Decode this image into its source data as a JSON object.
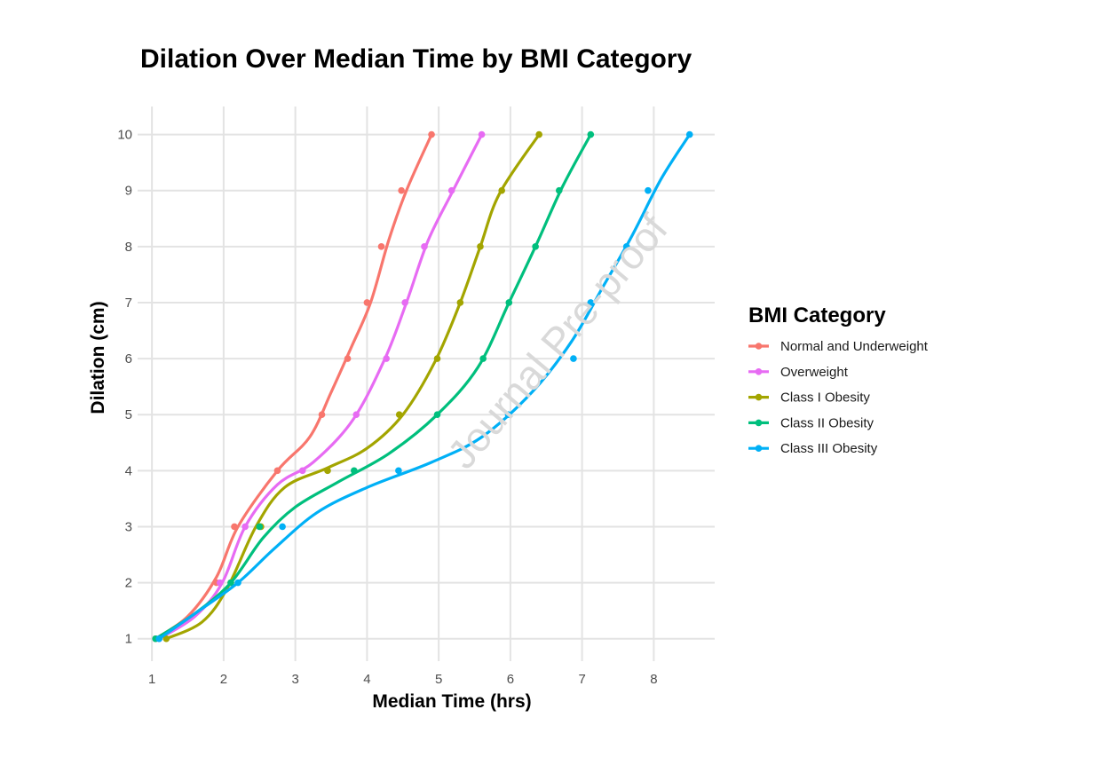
{
  "watermark": "Journal Pre-proof",
  "chart_data": {
    "type": "line",
    "title": "Dilation Over Median Time by BMI Category",
    "xlabel": "Median Time (hrs)",
    "ylabel": "Dilation (cm)",
    "xlim": [
      0.8,
      8.85
    ],
    "ylim": [
      0.6,
      10.5
    ],
    "xticks": [
      1,
      2,
      3,
      4,
      5,
      6,
      7,
      8
    ],
    "yticks": [
      1,
      2,
      3,
      4,
      5,
      6,
      7,
      8,
      9,
      10
    ],
    "grid": true,
    "legend": {
      "title": "BMI Category",
      "position": "right"
    },
    "series": [
      {
        "name": "Normal and Underweight",
        "color": "#F8766D",
        "points": [
          [
            1.05,
            1
          ],
          [
            1.9,
            2
          ],
          [
            2.15,
            3
          ],
          [
            2.75,
            4
          ],
          [
            3.37,
            5
          ],
          [
            3.73,
            6
          ],
          [
            4.0,
            7
          ],
          [
            4.2,
            8
          ],
          [
            4.48,
            9
          ],
          [
            4.9,
            10
          ]
        ],
        "smooth": [
          [
            1.05,
            1
          ],
          [
            1.5,
            1.4
          ],
          [
            1.9,
            2.1
          ],
          [
            2.2,
            3.0
          ],
          [
            2.75,
            4.0
          ],
          [
            3.2,
            4.6
          ],
          [
            3.5,
            5.4
          ],
          [
            3.78,
            6.2
          ],
          [
            4.05,
            7.0
          ],
          [
            4.3,
            8.1
          ],
          [
            4.55,
            9.0
          ],
          [
            4.9,
            10
          ]
        ]
      },
      {
        "name": "Overweight",
        "color": "#E76BF3",
        "points": [
          [
            1.1,
            1
          ],
          [
            1.95,
            2
          ],
          [
            2.3,
            3
          ],
          [
            3.1,
            4
          ],
          [
            3.85,
            5
          ],
          [
            4.27,
            6
          ],
          [
            4.53,
            7
          ],
          [
            4.8,
            8
          ],
          [
            5.18,
            9
          ],
          [
            5.6,
            10
          ]
        ],
        "smooth": [
          [
            1.1,
            1
          ],
          [
            1.6,
            1.4
          ],
          [
            1.98,
            2.0
          ],
          [
            2.3,
            3.0
          ],
          [
            2.75,
            3.75
          ],
          [
            3.25,
            4.15
          ],
          [
            3.8,
            4.9
          ],
          [
            4.25,
            6.0
          ],
          [
            4.55,
            7.0
          ],
          [
            4.85,
            8.1
          ],
          [
            5.2,
            9.0
          ],
          [
            5.6,
            10
          ]
        ]
      },
      {
        "name": "Class I Obesity",
        "color": "#A3A500",
        "points": [
          [
            1.2,
            1
          ],
          [
            2.1,
            2
          ],
          [
            2.52,
            3
          ],
          [
            3.45,
            4
          ],
          [
            4.45,
            5
          ],
          [
            4.98,
            6
          ],
          [
            5.3,
            7
          ],
          [
            5.58,
            8
          ],
          [
            5.88,
            9
          ],
          [
            6.4,
            10
          ]
        ],
        "smooth": [
          [
            1.2,
            1
          ],
          [
            1.7,
            1.3
          ],
          [
            2.05,
            1.9
          ],
          [
            2.45,
            3.0
          ],
          [
            2.85,
            3.7
          ],
          [
            3.45,
            4.05
          ],
          [
            4.0,
            4.4
          ],
          [
            4.5,
            5.0
          ],
          [
            4.95,
            5.95
          ],
          [
            5.3,
            7.0
          ],
          [
            5.58,
            8.0
          ],
          [
            5.85,
            8.95
          ],
          [
            6.4,
            10
          ]
        ]
      },
      {
        "name": "Class II Obesity",
        "color": "#00BF7D",
        "points": [
          [
            1.05,
            1
          ],
          [
            2.1,
            2
          ],
          [
            2.5,
            3
          ],
          [
            3.82,
            4
          ],
          [
            4.98,
            5
          ],
          [
            5.62,
            6
          ],
          [
            5.98,
            7
          ],
          [
            6.35,
            8
          ],
          [
            6.68,
            9
          ],
          [
            7.12,
            10
          ]
        ],
        "smooth": [
          [
            1.05,
            1
          ],
          [
            1.6,
            1.45
          ],
          [
            2.1,
            2.0
          ],
          [
            2.55,
            2.8
          ],
          [
            3.0,
            3.35
          ],
          [
            3.6,
            3.8
          ],
          [
            4.3,
            4.3
          ],
          [
            4.98,
            5.0
          ],
          [
            5.55,
            5.85
          ],
          [
            5.98,
            7.0
          ],
          [
            6.35,
            8.0
          ],
          [
            6.72,
            9.05
          ],
          [
            7.12,
            10
          ]
        ]
      },
      {
        "name": "Class III Obesity",
        "color": "#00B0F6",
        "points": [
          [
            1.1,
            1
          ],
          [
            2.2,
            2
          ],
          [
            2.82,
            3
          ],
          [
            4.44,
            4
          ],
          [
            5.97,
            5
          ],
          [
            6.88,
            6
          ],
          [
            7.12,
            7
          ],
          [
            7.62,
            8
          ],
          [
            7.92,
            9
          ],
          [
            8.5,
            10
          ]
        ],
        "smooth": [
          [
            1.1,
            1
          ],
          [
            1.6,
            1.45
          ],
          [
            2.2,
            2.0
          ],
          [
            2.7,
            2.6
          ],
          [
            3.3,
            3.25
          ],
          [
            4.0,
            3.7
          ],
          [
            4.9,
            4.15
          ],
          [
            5.6,
            4.6
          ],
          [
            6.3,
            5.4
          ],
          [
            6.85,
            6.3
          ],
          [
            7.3,
            7.3
          ],
          [
            7.7,
            8.2
          ],
          [
            8.1,
            9.2
          ],
          [
            8.5,
            10
          ]
        ]
      }
    ]
  }
}
